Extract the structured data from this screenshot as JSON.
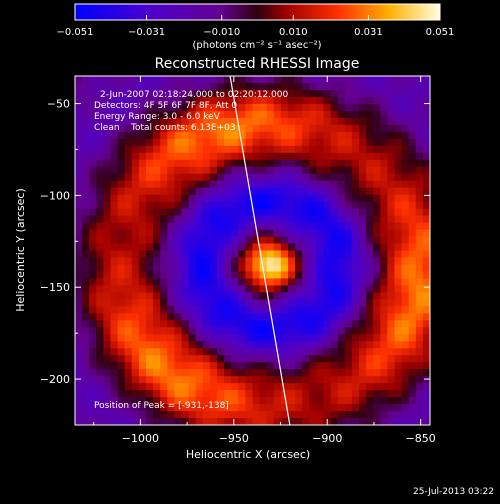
{
  "chart_data": {
    "type": "heatmap",
    "title": "Reconstructed RHESSI Image",
    "xlabel": "Heliocentric X (arcsec)",
    "ylabel": "Heliocentric Y (arcsec)",
    "xlim": [
      -1035,
      -845
    ],
    "ylim": [
      -225,
      -35
    ],
    "xticks": [
      -1000,
      -950,
      -900,
      -850
    ],
    "yticks": [
      -50,
      -100,
      -150,
      -200
    ],
    "xtick_labels": [
      "−1000",
      "−950",
      "−900",
      "−850"
    ],
    "ytick_labels": [
      "−50",
      "−100",
      "−150",
      "−200"
    ],
    "colorbar": {
      "ticks": [
        -0.051,
        -0.031,
        -0.01,
        0.01,
        0.031,
        0.051
      ],
      "tick_labels": [
        "−0.051",
        "−0.031",
        "−0.010",
        "0.010",
        "0.031",
        "0.051"
      ],
      "units_label": "(photons cm⁻² s⁻¹ asec⁻²)",
      "range": [
        -0.051,
        0.051
      ]
    },
    "annotations": {
      "time_range": "2-Jun-2007 02:18:24.000 to 02:20:12.000",
      "detectors": "Detectors: 4F 5F 6F 7F 8F, Att 0",
      "energy": "Energy Range: 3.0 - 6.0 keV",
      "clean": "Clean    Total counts: 6.13E+03",
      "peak": "Position of Peak = [-931,-138]"
    },
    "peak": {
      "x": -931,
      "y": -138,
      "value": 0.051
    },
    "limb_line": [
      [
        -952,
        -35
      ],
      [
        -920,
        -225
      ]
    ],
    "timestamp": "25-Jul-2013 03:22"
  },
  "colors": {
    "background": "#000000",
    "foreground": "#ffffff"
  }
}
